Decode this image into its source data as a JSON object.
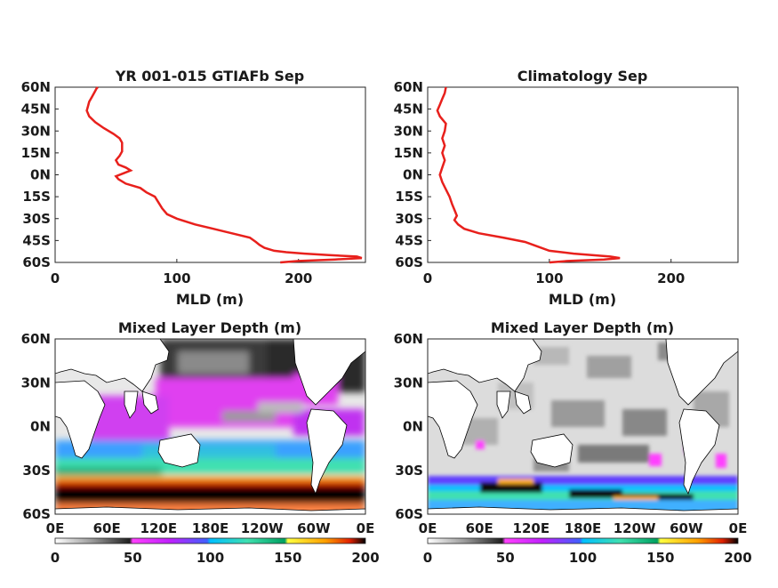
{
  "chart_data": [
    {
      "type": "line",
      "title": "YR 001-015 GTIAFb Sep",
      "xlabel": "MLD (m)",
      "ylabel": "",
      "xlim": [
        0,
        255
      ],
      "ylim": [
        -60,
        60
      ],
      "x_ticks": [
        "0",
        "100",
        "200"
      ],
      "y_ticks": [
        "60N",
        "45N",
        "30N",
        "15N",
        "0N",
        "15S",
        "30S",
        "45S",
        "60S"
      ],
      "line_color": "#e8201c",
      "series": [
        {
          "values": [
            {
              "lat": -60,
              "mld": 185
            },
            {
              "lat": -59,
              "mld": 200
            },
            {
              "lat": -58,
              "mld": 230
            },
            {
              "lat": -57,
              "mld": 252
            },
            {
              "lat": -56,
              "mld": 248
            },
            {
              "lat": -55,
              "mld": 225
            },
            {
              "lat": -54,
              "mld": 205
            },
            {
              "lat": -53,
              "mld": 190
            },
            {
              "lat": -52,
              "mld": 180
            },
            {
              "lat": -50,
              "mld": 172
            },
            {
              "lat": -48,
              "mld": 168
            },
            {
              "lat": -46,
              "mld": 165
            },
            {
              "lat": -43,
              "mld": 160
            },
            {
              "lat": -40,
              "mld": 145
            },
            {
              "lat": -37,
              "mld": 130
            },
            {
              "lat": -34,
              "mld": 115
            },
            {
              "lat": -30,
              "mld": 100
            },
            {
              "lat": -27,
              "mld": 92
            },
            {
              "lat": -23,
              "mld": 88
            },
            {
              "lat": -19,
              "mld": 85
            },
            {
              "lat": -15,
              "mld": 82
            },
            {
              "lat": -12,
              "mld": 75
            },
            {
              "lat": -9,
              "mld": 70
            },
            {
              "lat": -6,
              "mld": 58
            },
            {
              "lat": -3,
              "mld": 52
            },
            {
              "lat": -1,
              "mld": 50
            },
            {
              "lat": 1,
              "mld": 56
            },
            {
              "lat": 3,
              "mld": 62
            },
            {
              "lat": 5,
              "mld": 58
            },
            {
              "lat": 7,
              "mld": 52
            },
            {
              "lat": 10,
              "mld": 50
            },
            {
              "lat": 13,
              "mld": 53
            },
            {
              "lat": 16,
              "mld": 55
            },
            {
              "lat": 19,
              "mld": 55
            },
            {
              "lat": 22,
              "mld": 55
            },
            {
              "lat": 25,
              "mld": 53
            },
            {
              "lat": 28,
              "mld": 48
            },
            {
              "lat": 32,
              "mld": 40
            },
            {
              "lat": 36,
              "mld": 33
            },
            {
              "lat": 40,
              "mld": 28
            },
            {
              "lat": 44,
              "mld": 26
            },
            {
              "lat": 47,
              "mld": 27
            },
            {
              "lat": 50,
              "mld": 28
            },
            {
              "lat": 53,
              "mld": 30
            },
            {
              "lat": 56,
              "mld": 32
            },
            {
              "lat": 59,
              "mld": 34
            },
            {
              "lat": 60,
              "mld": 35
            }
          ]
        }
      ]
    },
    {
      "type": "line",
      "title": "Climatology Sep",
      "xlabel": "MLD (m)",
      "ylabel": "",
      "xlim": [
        0,
        255
      ],
      "ylim": [
        -60,
        60
      ],
      "x_ticks": [
        "0",
        "100",
        "200"
      ],
      "y_ticks": [
        "60N",
        "45N",
        "30N",
        "15N",
        "0N",
        "15S",
        "30S",
        "45S",
        "60S"
      ],
      "line_color": "#e8201c",
      "series": [
        {
          "values": [
            {
              "lat": -60,
              "mld": 100
            },
            {
              "lat": -59,
              "mld": 115
            },
            {
              "lat": -58,
              "mld": 145
            },
            {
              "lat": -57,
              "mld": 158
            },
            {
              "lat": -56,
              "mld": 150
            },
            {
              "lat": -55,
              "mld": 135
            },
            {
              "lat": -54,
              "mld": 120
            },
            {
              "lat": -52,
              "mld": 100
            },
            {
              "lat": -49,
              "mld": 90
            },
            {
              "lat": -46,
              "mld": 80
            },
            {
              "lat": -43,
              "mld": 62
            },
            {
              "lat": -40,
              "mld": 42
            },
            {
              "lat": -37,
              "mld": 30
            },
            {
              "lat": -34,
              "mld": 25
            },
            {
              "lat": -31,
              "mld": 22
            },
            {
              "lat": -28,
              "mld": 24
            },
            {
              "lat": -24,
              "mld": 22
            },
            {
              "lat": -20,
              "mld": 20
            },
            {
              "lat": -15,
              "mld": 18
            },
            {
              "lat": -10,
              "mld": 15
            },
            {
              "lat": -5,
              "mld": 12
            },
            {
              "lat": 0,
              "mld": 10
            },
            {
              "lat": 5,
              "mld": 12
            },
            {
              "lat": 10,
              "mld": 14
            },
            {
              "lat": 15,
              "mld": 12
            },
            {
              "lat": 20,
              "mld": 14
            },
            {
              "lat": 25,
              "mld": 12
            },
            {
              "lat": 30,
              "mld": 14
            },
            {
              "lat": 35,
              "mld": 15
            },
            {
              "lat": 40,
              "mld": 10
            },
            {
              "lat": 44,
              "mld": 8
            },
            {
              "lat": 48,
              "mld": 10
            },
            {
              "lat": 52,
              "mld": 12
            },
            {
              "lat": 56,
              "mld": 14
            },
            {
              "lat": 60,
              "mld": 15
            }
          ]
        }
      ]
    },
    {
      "type": "heatmap",
      "title": "Mixed Layer Depth (m)",
      "x_ticks": [
        "0E",
        "60E",
        "120E",
        "180E",
        "120W",
        "60W",
        "0E"
      ],
      "y_ticks": [
        "60N",
        "30N",
        "0N",
        "30S",
        "60S"
      ],
      "xlim": [
        0,
        360
      ],
      "ylim": [
        -60,
        60
      ],
      "colorbar": {
        "ticks": [
          "0",
          "50",
          "100",
          "150",
          "200"
        ],
        "range": [
          0,
          200
        ],
        "stops": [
          "#ffffff",
          "#9a9a9a",
          "#202020",
          "#ff40ff",
          "#c020ff",
          "#4060ff",
          "#00c0ff",
          "#40e0b0",
          "#00a060",
          "#ffff40",
          "#ffa000",
          "#e02000",
          "#000000"
        ]
      },
      "field": "model"
    },
    {
      "type": "heatmap",
      "title": "Mixed Layer Depth (m)",
      "x_ticks": [
        "0E",
        "60E",
        "120E",
        "180E",
        "120W",
        "60W",
        "0E"
      ],
      "y_ticks": [
        "60N",
        "30N",
        "0N",
        "30S",
        "60S"
      ],
      "xlim": [
        0,
        360
      ],
      "ylim": [
        -60,
        60
      ],
      "colorbar": {
        "ticks": [
          "0",
          "50",
          "100",
          "150",
          "200"
        ],
        "range": [
          0,
          200
        ],
        "stops": [
          "#ffffff",
          "#9a9a9a",
          "#202020",
          "#ff40ff",
          "#c020ff",
          "#4060ff",
          "#00c0ff",
          "#40e0b0",
          "#00a060",
          "#ffff40",
          "#ffa000",
          "#e02000",
          "#000000"
        ]
      },
      "field": "climatology"
    }
  ]
}
